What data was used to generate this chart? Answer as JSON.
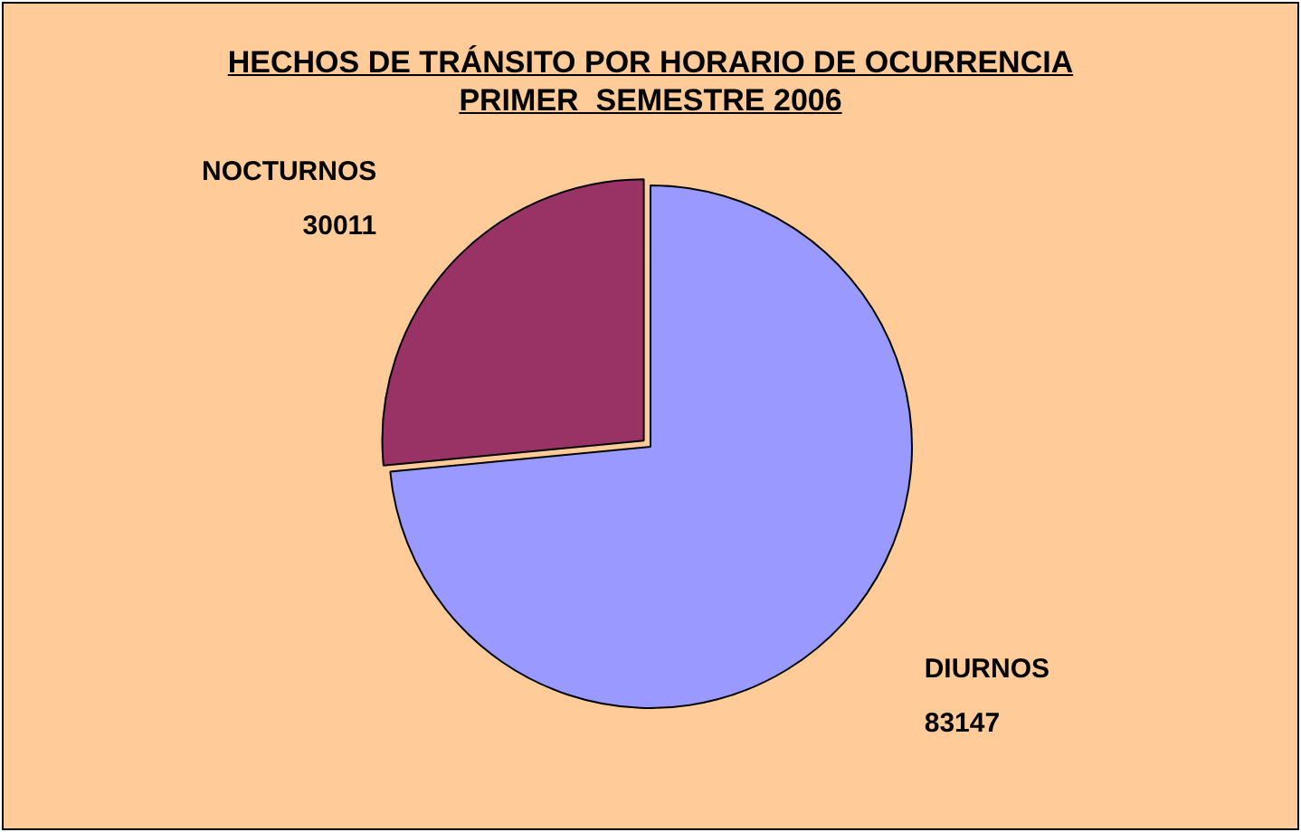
{
  "chart_data": {
    "type": "pie",
    "title": "HECHOS DE TRÁNSITO POR HORARIO DE OCURRENCIA",
    "subtitle": "PRIMER  SEMESTRE 2006",
    "categories": [
      "DIURNOS",
      "NOCTURNOS"
    ],
    "values": [
      83147,
      30011
    ],
    "colors": [
      "#9999ff",
      "#993366"
    ],
    "data_labels": true,
    "legend": false
  }
}
